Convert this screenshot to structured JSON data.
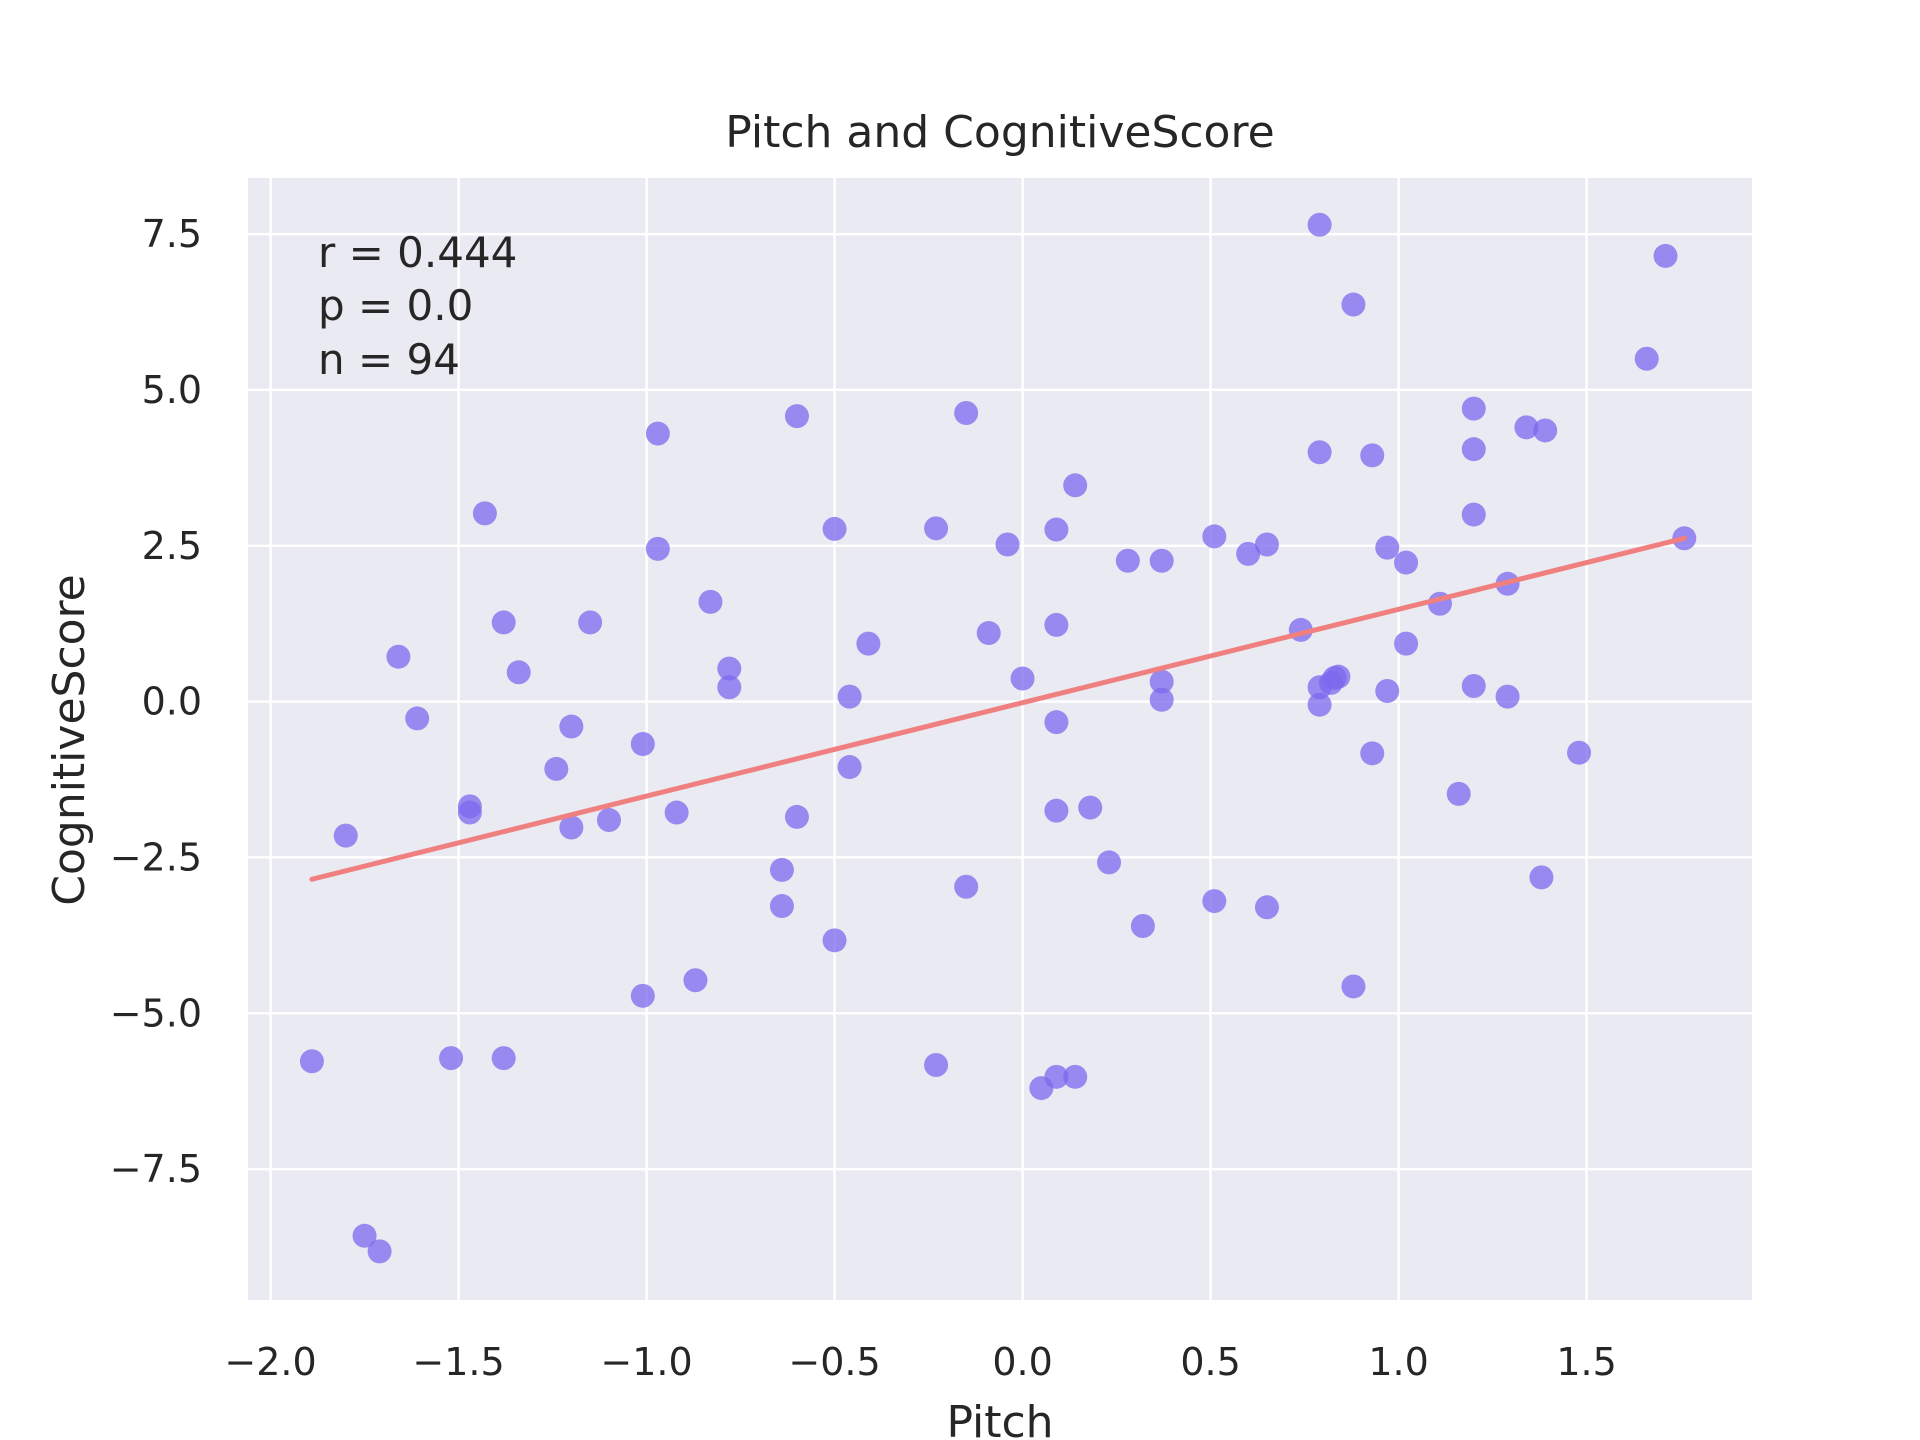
{
  "chart_data": {
    "type": "scatter",
    "title": "Pitch and CognitiveScore",
    "xlabel": "Pitch",
    "ylabel": "CognitiveScore",
    "xlim": [
      -2.06,
      1.94
    ],
    "ylim": [
      -9.6,
      8.4
    ],
    "xticks": [
      -2.0,
      -1.5,
      -1.0,
      -0.5,
      0.0,
      0.5,
      1.0,
      1.5
    ],
    "xtick_labels": [
      "−2.0",
      "−1.5",
      "−1.0",
      "−0.5",
      "0.0",
      "0.5",
      "1.0",
      "1.5"
    ],
    "yticks": [
      -7.5,
      -5.0,
      -2.5,
      0.0,
      2.5,
      5.0,
      7.5
    ],
    "ytick_labels": [
      "−7.5",
      "−5.0",
      "−2.5",
      "0.0",
      "2.5",
      "5.0",
      "7.5"
    ],
    "grid": true,
    "background": "#eaeaf2",
    "point_color": "#7b68ee",
    "line_color": "#f08080",
    "stats": {
      "r": "r = 0.444",
      "p": "p = 0.0",
      "n": "n = 94"
    },
    "regression": {
      "x": [
        -1.89,
        1.76
      ],
      "y": [
        -2.85,
        2.62
      ]
    },
    "points": [
      [
        0.79,
        7.65
      ],
      [
        1.71,
        7.15
      ],
      [
        0.88,
        6.37
      ],
      [
        1.66,
        5.5
      ],
      [
        -0.15,
        4.63
      ],
      [
        -0.6,
        4.58
      ],
      [
        -0.97,
        4.3
      ],
      [
        1.2,
        4.7
      ],
      [
        1.34,
        4.4
      ],
      [
        1.39,
        4.35
      ],
      [
        0.79,
        4.0
      ],
      [
        0.93,
        3.95
      ],
      [
        1.2,
        4.05
      ],
      [
        0.14,
        3.47
      ],
      [
        -1.43,
        3.02
      ],
      [
        1.2,
        3.0
      ],
      [
        -0.5,
        2.77
      ],
      [
        -0.23,
        2.78
      ],
      [
        0.09,
        2.76
      ],
      [
        0.51,
        2.65
      ],
      [
        0.65,
        2.52
      ],
      [
        0.6,
        2.37
      ],
      [
        1.76,
        2.62
      ],
      [
        0.97,
        2.47
      ],
      [
        1.02,
        2.23
      ],
      [
        -0.97,
        2.45
      ],
      [
        -0.04,
        2.52
      ],
      [
        0.28,
        2.26
      ],
      [
        0.37,
        2.26
      ],
      [
        1.29,
        1.89
      ],
      [
        1.11,
        1.57
      ],
      [
        -0.83,
        1.6
      ],
      [
        -1.38,
        1.27
      ],
      [
        -1.15,
        1.27
      ],
      [
        0.09,
        1.23
      ],
      [
        -0.09,
        1.1
      ],
      [
        0.74,
        1.15
      ],
      [
        -0.41,
        0.93
      ],
      [
        1.02,
        0.93
      ],
      [
        -1.66,
        0.72
      ],
      [
        -0.78,
        0.53
      ],
      [
        -1.34,
        0.47
      ],
      [
        0.0,
        0.37
      ],
      [
        0.37,
        0.32
      ],
      [
        0.83,
        0.38
      ],
      [
        0.84,
        0.4
      ],
      [
        0.82,
        0.3
      ],
      [
        -0.78,
        0.23
      ],
      [
        0.79,
        0.23
      ],
      [
        1.2,
        0.25
      ],
      [
        0.97,
        0.17
      ],
      [
        1.29,
        0.08
      ],
      [
        -0.46,
        0.08
      ],
      [
        0.37,
        0.03
      ],
      [
        0.79,
        -0.05
      ],
      [
        -1.61,
        -0.27
      ],
      [
        -1.2,
        -0.4
      ],
      [
        0.09,
        -0.33
      ],
      [
        -1.01,
        -0.68
      ],
      [
        0.93,
        -0.83
      ],
      [
        1.48,
        -0.82
      ],
      [
        -1.24,
        -1.08
      ],
      [
        -0.46,
        -1.05
      ],
      [
        1.16,
        -1.48
      ],
      [
        -1.47,
        -1.68
      ],
      [
        -1.47,
        -1.78
      ],
      [
        -0.92,
        -1.78
      ],
      [
        0.09,
        -1.75
      ],
      [
        0.18,
        -1.7
      ],
      [
        -0.6,
        -1.85
      ],
      [
        -1.1,
        -1.9
      ],
      [
        -1.2,
        -2.02
      ],
      [
        -1.8,
        -2.15
      ],
      [
        0.23,
        -2.58
      ],
      [
        -0.64,
        -2.7
      ],
      [
        1.38,
        -2.82
      ],
      [
        -0.15,
        -2.97
      ],
      [
        0.51,
        -3.2
      ],
      [
        -0.64,
        -3.28
      ],
      [
        0.65,
        -3.3
      ],
      [
        0.32,
        -3.6
      ],
      [
        -0.5,
        -3.83
      ],
      [
        -0.87,
        -4.47
      ],
      [
        0.88,
        -4.57
      ],
      [
        -1.01,
        -4.72
      ],
      [
        -1.89,
        -5.77
      ],
      [
        -1.52,
        -5.72
      ],
      [
        -1.38,
        -5.72
      ],
      [
        -0.23,
        -5.83
      ],
      [
        0.09,
        -6.02
      ],
      [
        0.14,
        -6.02
      ],
      [
        0.05,
        -6.2
      ],
      [
        -1.75,
        -8.57
      ],
      [
        -1.71,
        -8.82
      ]
    ]
  }
}
